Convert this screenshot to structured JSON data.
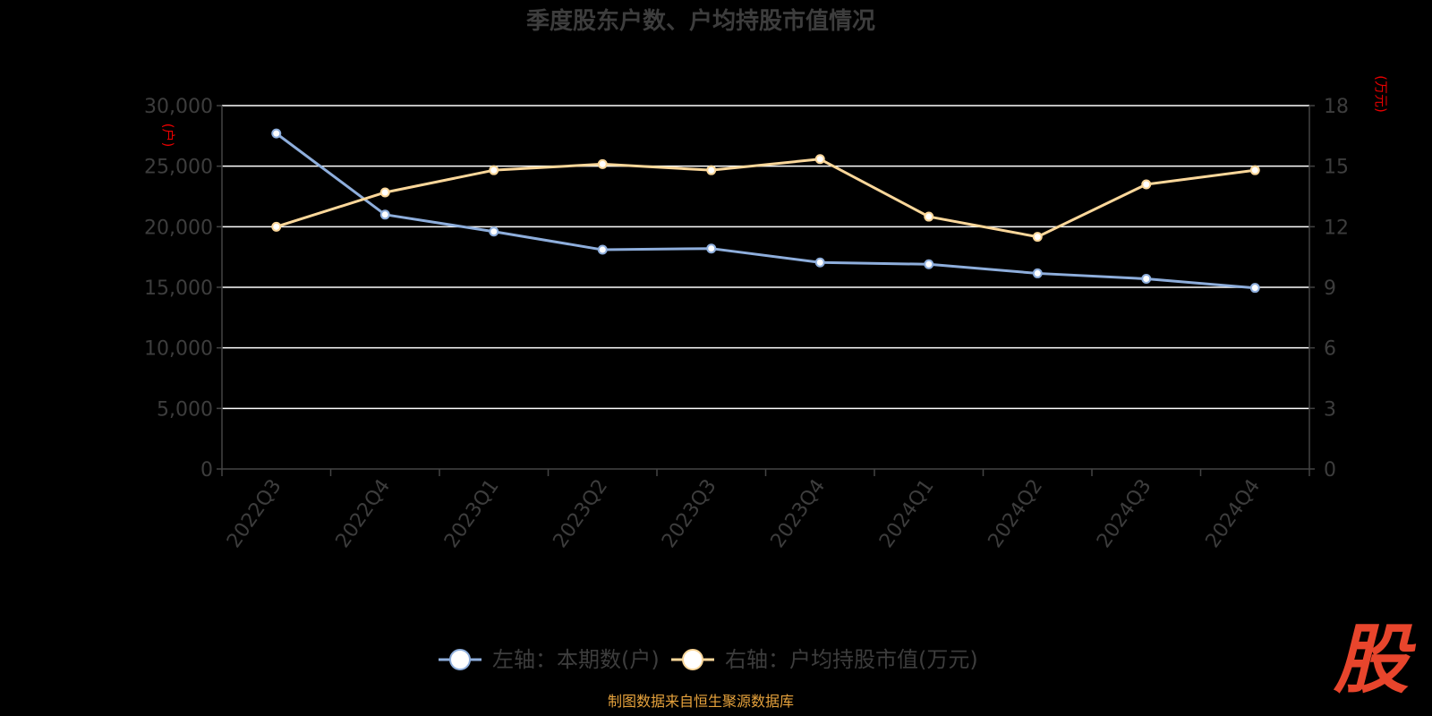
{
  "chart_data": {
    "type": "line",
    "title": "季度股东户数、户均持股市值情况",
    "categories": [
      "2022Q3",
      "2022Q4",
      "2023Q1",
      "2023Q2",
      "2023Q3",
      "2023Q4",
      "2024Q1",
      "2024Q2",
      "2024Q3",
      "2024Q4"
    ],
    "y_left": {
      "unit": "(户)",
      "ticks": [
        "0",
        "5,000",
        "10,000",
        "15,000",
        "20,000",
        "25,000",
        "30,000"
      ],
      "ylim": [
        0,
        30000
      ]
    },
    "y_right": {
      "unit": "(万元)",
      "ticks": [
        "0",
        "3",
        "6",
        "9",
        "12",
        "15",
        "18"
      ],
      "ylim": [
        0,
        18
      ]
    },
    "series": [
      {
        "name": "左轴：本期数(户)",
        "axis": "left",
        "color": "#8eaedc",
        "values": [
          27700,
          21000,
          19600,
          18100,
          18200,
          17050,
          16900,
          16150,
          15700,
          14950
        ]
      },
      {
        "name": "右轴：户均持股市值(万元)",
        "axis": "right",
        "color": "#fbd79a",
        "values": [
          12.0,
          13.7,
          14.8,
          15.1,
          14.8,
          15.35,
          12.5,
          11.5,
          14.1,
          14.8
        ]
      }
    ],
    "grid": true,
    "legend": "bottom-center",
    "source": "制图数据来自恒生聚源数据库"
  },
  "brand": {
    "logo_char": "股",
    "logo_color": "#e8452c"
  }
}
